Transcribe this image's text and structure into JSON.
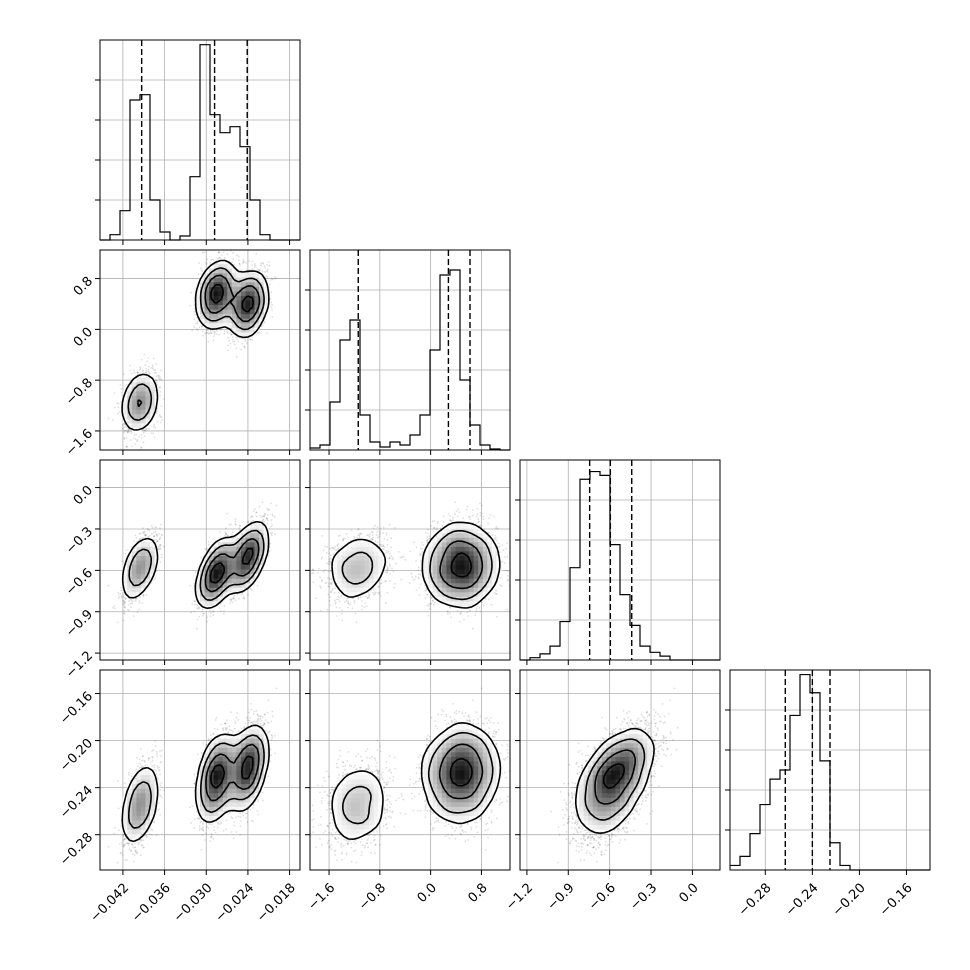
{
  "chart_data": {
    "type": "corner",
    "parameters": [
      {
        "range": [
          -0.0453,
          -0.0165
        ],
        "ticks": [
          -0.042,
          -0.036,
          -0.03,
          -0.024,
          -0.018
        ],
        "tick_labels": [
          "−0.042",
          "−0.036",
          "−0.030",
          "−0.024",
          "−0.018"
        ],
        "quantiles": [
          -0.0393,
          -0.0288,
          -0.0241
        ],
        "histogram": {
          "bin_width": 0.00144,
          "counts": [
            0,
            8,
            44,
            210,
            218,
            60,
            12,
            0,
            6,
            95,
            293,
            188,
            161,
            170,
            140,
            60,
            8,
            0,
            0,
            0
          ],
          "ylim": [
            0,
            300
          ]
        }
      },
      {
        "range": [
          -1.9,
          1.25
        ],
        "ticks": [
          -1.6,
          -0.8,
          0.0,
          0.8
        ],
        "tick_labels": [
          "−1.6",
          "−0.8",
          "0.0",
          "0.8"
        ],
        "quantiles": [
          -1.14,
          0.28,
          0.62
        ],
        "histogram": {
          "bin_width": 0.1575,
          "counts": [
            2,
            5,
            48,
            110,
            130,
            35,
            8,
            3,
            8,
            5,
            15,
            35,
            100,
            175,
            180,
            70,
            25,
            5,
            1,
            0
          ],
          "ylim": [
            0,
            200
          ]
        }
      },
      {
        "range": [
          -1.25,
          0.2
        ],
        "ticks": [
          -1.2,
          -0.9,
          -0.6,
          -0.3,
          0.0
        ],
        "tick_labels": [
          "−1.2",
          "−0.9",
          "−0.6",
          "−0.3",
          "0.0"
        ],
        "quantiles": [
          -0.745,
          -0.595,
          -0.44
        ],
        "histogram": {
          "bin_width": 0.0725,
          "counts": [
            0,
            3,
            8,
            18,
            50,
            120,
            235,
            245,
            240,
            150,
            85,
            45,
            18,
            10,
            5,
            0,
            0,
            0,
            0,
            0
          ],
          "ylim": [
            0,
            260
          ]
        }
      },
      {
        "range": [
          -0.31,
          -0.14
        ],
        "ticks": [
          -0.28,
          -0.24,
          -0.2,
          -0.16
        ],
        "tick_labels": [
          "−0.28",
          "−0.24",
          "−0.20",
          "−0.16"
        ],
        "quantiles": [
          -0.263,
          -0.24,
          -0.225
        ],
        "histogram": {
          "bin_width": 0.0085,
          "counts": [
            5,
            15,
            40,
            72,
            100,
            110,
            170,
            215,
            195,
            120,
            30,
            5,
            0,
            0,
            0,
            0,
            0,
            0,
            0,
            0
          ],
          "ylim": [
            0,
            220
          ]
        }
      }
    ],
    "density": {
      "modes": [
        {
          "center": [
            -0.0395,
            -1.15,
            -0.58,
            -0.255
          ],
          "weight": 0.22
        },
        {
          "center": [
            -0.0285,
            0.55,
            -0.62,
            -0.232
          ],
          "weight": 0.4
        },
        {
          "center": [
            -0.024,
            0.4,
            -0.5,
            -0.223
          ],
          "weight": 0.38
        }
      ],
      "spreads": [
        0.0012,
        0.25,
        0.12,
        0.018
      ],
      "correlations": {
        "1-0": 0.3,
        "2-0": 0.6,
        "2-1": 0.2,
        "3-0": 0.45,
        "3-1": 0.15,
        "3-2": 0.55
      },
      "contour_levels": [
        0.12,
        0.39,
        0.68,
        0.86
      ],
      "sample_points_shown": true
    }
  }
}
